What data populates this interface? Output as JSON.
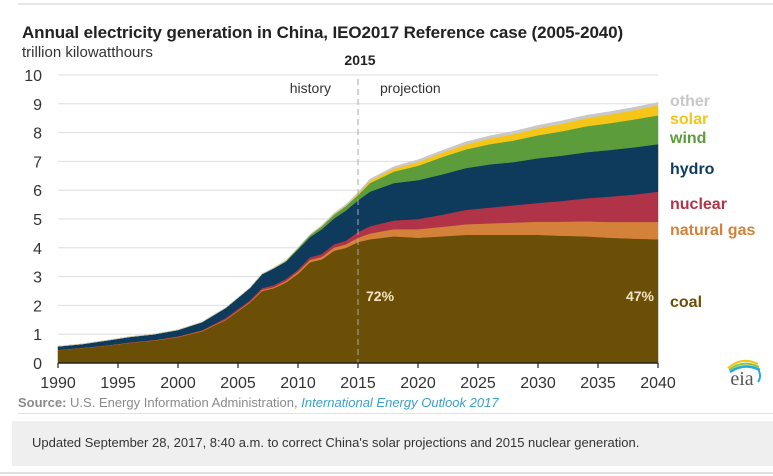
{
  "chart_data": {
    "type": "area",
    "stacked": true,
    "title": "Annual electricity generation in China, IEO2017 Reference case (2005-2040)",
    "ylabel": "trillion kilowatthours",
    "xlabel": "",
    "xlim": [
      1990,
      2040
    ],
    "ylim": [
      0,
      10
    ],
    "xticks": [
      "1990",
      "1995",
      "2000",
      "2005",
      "2010",
      "2015",
      "2020",
      "2025",
      "2030",
      "2035",
      "2040"
    ],
    "yticks": [
      "0",
      "1",
      "2",
      "3",
      "4",
      "5",
      "6",
      "7",
      "8",
      "9",
      "10"
    ],
    "grid": "horizontal",
    "divider": {
      "year": 2015,
      "label": "2015",
      "left_label": "history",
      "right_label": "projection"
    },
    "x": [
      1990,
      1992,
      1994,
      1996,
      1998,
      2000,
      2002,
      2004,
      2006,
      2007,
      2008,
      2009,
      2010,
      2011,
      2012,
      2013,
      2014,
      2015,
      2016,
      2018,
      2020,
      2022,
      2024,
      2026,
      2028,
      2030,
      2032,
      2034,
      2036,
      2038,
      2040
    ],
    "series": [
      {
        "name": "coal",
        "color": "#6b4f07",
        "values": [
          0.45,
          0.52,
          0.6,
          0.7,
          0.78,
          0.9,
          1.1,
          1.5,
          2.1,
          2.5,
          2.6,
          2.8,
          3.1,
          3.5,
          3.6,
          3.9,
          4.0,
          4.2,
          4.3,
          4.4,
          4.35,
          4.4,
          4.45,
          4.45,
          4.45,
          4.45,
          4.42,
          4.4,
          4.35,
          4.32,
          4.3
        ]
      },
      {
        "name": "natural gas",
        "color": "#d4823a",
        "values": [
          0.01,
          0.01,
          0.01,
          0.01,
          0.01,
          0.01,
          0.02,
          0.02,
          0.03,
          0.04,
          0.04,
          0.05,
          0.07,
          0.08,
          0.09,
          0.11,
          0.12,
          0.15,
          0.2,
          0.25,
          0.3,
          0.33,
          0.37,
          0.4,
          0.43,
          0.46,
          0.49,
          0.52,
          0.55,
          0.58,
          0.6
        ]
      },
      {
        "name": "nuclear",
        "color": "#b03347",
        "values": [
          0.0,
          0.0,
          0.0,
          0.01,
          0.01,
          0.02,
          0.02,
          0.05,
          0.05,
          0.06,
          0.07,
          0.07,
          0.07,
          0.09,
          0.1,
          0.11,
          0.13,
          0.2,
          0.25,
          0.3,
          0.35,
          0.42,
          0.5,
          0.55,
          0.6,
          0.65,
          0.72,
          0.8,
          0.88,
          0.95,
          1.05
        ]
      },
      {
        "name": "hydro",
        "color": "#0e3a5c",
        "values": [
          0.12,
          0.13,
          0.17,
          0.19,
          0.2,
          0.22,
          0.28,
          0.35,
          0.43,
          0.48,
          0.58,
          0.6,
          0.7,
          0.7,
          0.86,
          0.9,
          1.05,
          1.1,
          1.2,
          1.3,
          1.35,
          1.4,
          1.45,
          1.5,
          1.5,
          1.55,
          1.57,
          1.6,
          1.62,
          1.64,
          1.65
        ]
      },
      {
        "name": "wind",
        "color": "#5c9c3a",
        "values": [
          0.0,
          0.0,
          0.0,
          0.0,
          0.0,
          0.0,
          0.0,
          0.0,
          0.0,
          0.01,
          0.01,
          0.03,
          0.05,
          0.07,
          0.1,
          0.13,
          0.15,
          0.18,
          0.3,
          0.4,
          0.5,
          0.6,
          0.65,
          0.7,
          0.75,
          0.8,
          0.85,
          0.9,
          0.93,
          0.97,
          1.0
        ]
      },
      {
        "name": "solar",
        "color": "#f5c518",
        "values": [
          0.0,
          0.0,
          0.0,
          0.0,
          0.0,
          0.0,
          0.0,
          0.0,
          0.0,
          0.0,
          0.0,
          0.0,
          0.0,
          0.0,
          0.01,
          0.01,
          0.02,
          0.04,
          0.08,
          0.1,
          0.13,
          0.15,
          0.17,
          0.2,
          0.22,
          0.24,
          0.26,
          0.28,
          0.3,
          0.32,
          0.35
        ]
      },
      {
        "name": "other",
        "color": "#c8c8c8",
        "values": [
          0.0,
          0.0,
          0.0,
          0.0,
          0.0,
          0.0,
          0.01,
          0.01,
          0.01,
          0.01,
          0.02,
          0.02,
          0.02,
          0.03,
          0.03,
          0.04,
          0.04,
          0.05,
          0.06,
          0.07,
          0.08,
          0.08,
          0.09,
          0.09,
          0.1,
          0.1,
          0.1,
          0.1,
          0.1,
          0.1,
          0.1
        ]
      }
    ],
    "legend": [
      "other",
      "solar",
      "wind",
      "hydro",
      "nuclear",
      "natural gas",
      "coal"
    ],
    "legend_placement": "right",
    "annotations": [
      {
        "text": "72%",
        "year": 2015,
        "value": 2.15
      },
      {
        "text": "47%",
        "year": 2040,
        "value": 2.15
      }
    ]
  },
  "header": {
    "title": "Annual electricity generation in China, IEO2017 Reference case (2005-2040)",
    "units": "trillion kilowatthours"
  },
  "source": {
    "label": "Source:",
    "agency": "U.S. Energy Information Administration,",
    "publication": "International Energy Outlook 2017"
  },
  "note": "Updated September 28, 2017, 8:40 a.m. to correct China's solar projections and 2015 nuclear generation.",
  "logo": "eia"
}
